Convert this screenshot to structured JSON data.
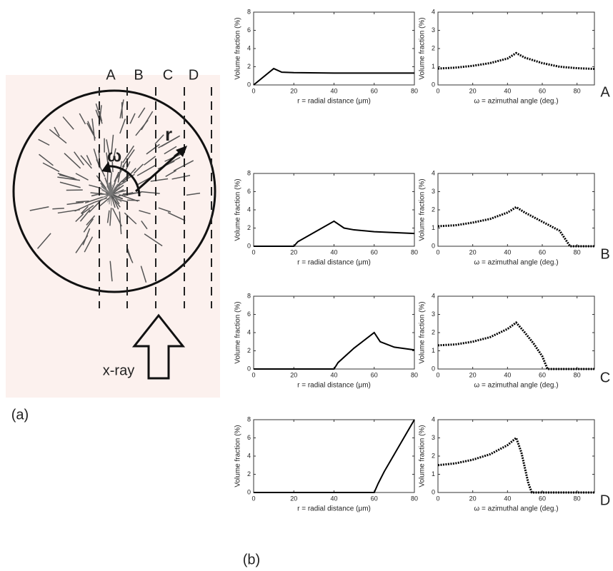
{
  "diagram": {
    "column_labels": [
      "A",
      "B",
      "C",
      "D"
    ],
    "omega": "ω",
    "r": "r",
    "source": "x-ray",
    "panel_a": "(a)",
    "panel_b": "(b)",
    "row_labels": [
      "A",
      "B",
      "C",
      "D"
    ]
  },
  "chart_data": [
    {
      "type": "line",
      "xlabel": "r = radial distance (μm)",
      "ylabel": "Volume fraction (%)",
      "x": [
        0,
        10,
        14,
        20,
        40,
        60,
        80
      ],
      "series": [
        {
          "color": "#000000",
          "style": "solid",
          "values": [
            0,
            1.8,
            1.4,
            1.35,
            1.3,
            1.3,
            1.3
          ]
        }
      ],
      "xlim": [
        0,
        80
      ],
      "xticks": [
        0,
        20,
        40,
        60,
        80
      ],
      "ylim": [
        0,
        8
      ],
      "yticks": [
        0,
        2,
        4,
        6,
        8
      ]
    },
    {
      "type": "line",
      "xlabel": "ω = azimuthal angle (deg.)",
      "ylabel": "Volume fraction (%)",
      "x": [
        0,
        10,
        20,
        30,
        40,
        45,
        50,
        60,
        70,
        80,
        90
      ],
      "series": [
        {
          "color": "#000000",
          "style": "dotted",
          "values": [
            0.9,
            0.95,
            1.05,
            1.2,
            1.45,
            1.75,
            1.5,
            1.2,
            1.0,
            0.92,
            0.88
          ]
        }
      ],
      "xlim": [
        0,
        90
      ],
      "xticks": [
        0,
        20,
        40,
        60,
        80
      ],
      "ylim": [
        0,
        4
      ],
      "yticks": [
        0,
        1,
        2,
        3,
        4
      ]
    },
    {
      "type": "line",
      "xlabel": "r = radial distance (μm)",
      "ylabel": "Volume fraction (%)",
      "x": [
        0,
        20,
        22,
        30,
        40,
        45,
        50,
        60,
        70,
        80
      ],
      "series": [
        {
          "color": "#000000",
          "style": "solid",
          "values": [
            0,
            0,
            0.5,
            1.5,
            2.75,
            2.0,
            1.8,
            1.6,
            1.5,
            1.4
          ]
        }
      ],
      "xlim": [
        0,
        80
      ],
      "xticks": [
        0,
        20,
        40,
        60,
        80
      ],
      "ylim": [
        0,
        8
      ],
      "yticks": [
        0,
        2,
        4,
        6,
        8
      ]
    },
    {
      "type": "line",
      "xlabel": "ω = azimuthal angle (deg.)",
      "ylabel": "Volume fraction (%)",
      "x": [
        0,
        10,
        20,
        30,
        40,
        45,
        50,
        60,
        70,
        76,
        80,
        90
      ],
      "series": [
        {
          "color": "#000000",
          "style": "dotted",
          "values": [
            1.1,
            1.15,
            1.3,
            1.5,
            1.85,
            2.15,
            1.85,
            1.35,
            0.85,
            0,
            0,
            0
          ]
        }
      ],
      "xlim": [
        0,
        90
      ],
      "xticks": [
        0,
        20,
        40,
        60,
        80
      ],
      "ylim": [
        0,
        4
      ],
      "yticks": [
        0,
        1,
        2,
        3,
        4
      ]
    },
    {
      "type": "line",
      "xlabel": "r = radial distance (μm)",
      "ylabel": "Volume fraction (%)",
      "x": [
        0,
        40,
        42,
        50,
        60,
        63,
        70,
        80
      ],
      "series": [
        {
          "color": "#000000",
          "style": "solid",
          "values": [
            0,
            0,
            0.7,
            2.3,
            4.0,
            3.0,
            2.4,
            2.1
          ]
        }
      ],
      "xlim": [
        0,
        80
      ],
      "xticks": [
        0,
        20,
        40,
        60,
        80
      ],
      "ylim": [
        0,
        8
      ],
      "yticks": [
        0,
        2,
        4,
        6,
        8
      ]
    },
    {
      "type": "line",
      "xlabel": "ω = azimuthal angle (deg.)",
      "ylabel": "Volume fraction (%)",
      "x": [
        0,
        10,
        20,
        30,
        40,
        45,
        50,
        55,
        60,
        63,
        90
      ],
      "series": [
        {
          "color": "#000000",
          "style": "dotted",
          "values": [
            1.3,
            1.35,
            1.5,
            1.75,
            2.2,
            2.55,
            2.0,
            1.4,
            0.7,
            0,
            0
          ]
        }
      ],
      "xlim": [
        0,
        90
      ],
      "xticks": [
        0,
        20,
        40,
        60,
        80
      ],
      "ylim": [
        0,
        4
      ],
      "yticks": [
        0,
        1,
        2,
        3,
        4
      ]
    },
    {
      "type": "line",
      "xlabel": "r = radial distance (μm)",
      "ylabel": "Volume fraction (%)",
      "x": [
        0,
        60,
        62,
        65,
        70,
        75,
        80
      ],
      "series": [
        {
          "color": "#000000",
          "style": "solid",
          "values": [
            0,
            0,
            1.0,
            2.3,
            4.2,
            6.1,
            8
          ]
        }
      ],
      "xlim": [
        0,
        80
      ],
      "xticks": [
        0,
        20,
        40,
        60,
        80
      ],
      "ylim": [
        0,
        8
      ],
      "yticks": [
        0,
        2,
        4,
        6,
        8
      ]
    },
    {
      "type": "line",
      "xlabel": "ω = azimuthal angle (deg.)",
      "ylabel": "Volume fraction (%)",
      "x": [
        0,
        10,
        20,
        30,
        40,
        45,
        48,
        52,
        54,
        90
      ],
      "series": [
        {
          "color": "#000000",
          "style": "dotted",
          "values": [
            1.5,
            1.6,
            1.8,
            2.1,
            2.6,
            3.0,
            2.2,
            0.5,
            0,
            0
          ]
        }
      ],
      "xlim": [
        0,
        90
      ],
      "xticks": [
        0,
        20,
        40,
        60,
        80
      ],
      "ylim": [
        0,
        4
      ],
      "yticks": [
        0,
        1,
        2,
        3,
        4
      ]
    }
  ]
}
